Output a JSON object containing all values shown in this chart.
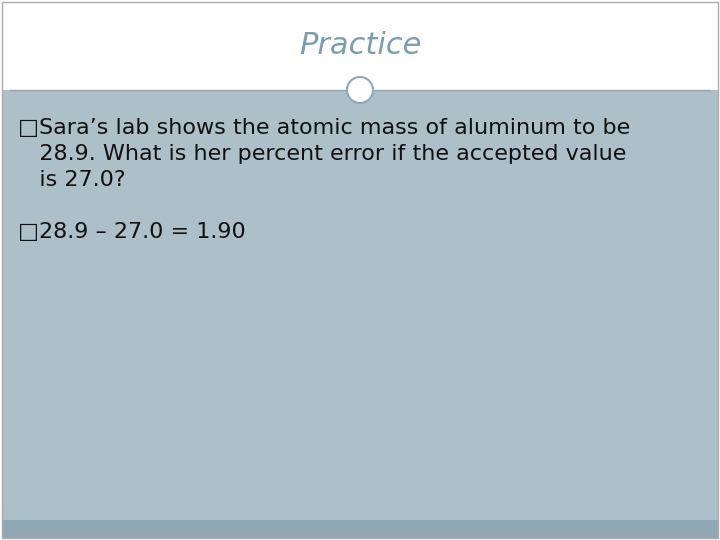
{
  "title": "Practice",
  "title_color": "#7a9eb0",
  "title_fontsize": 22,
  "title_font": "Georgia",
  "bg_white": "#ffffff",
  "bg_content": "#adbfc8",
  "bg_strip": "#8fa8b4",
  "divider_color": "#8fa8b4",
  "circle_edgecolor": "#8fa8b4",
  "circle_facecolor": "#ffffff",
  "border_color": "#aaaaaa",
  "line1": "□Sara’s lab shows the atomic mass of aluminum to be",
  "line2": "   28.9. What is her percent error if the accepted value",
  "line3": "   is 27.0?",
  "line4": "",
  "line5": "□28.9 – 27.0 = 1.90",
  "body_fontsize": 16,
  "body_color": "#111111",
  "body_font": "Georgia"
}
